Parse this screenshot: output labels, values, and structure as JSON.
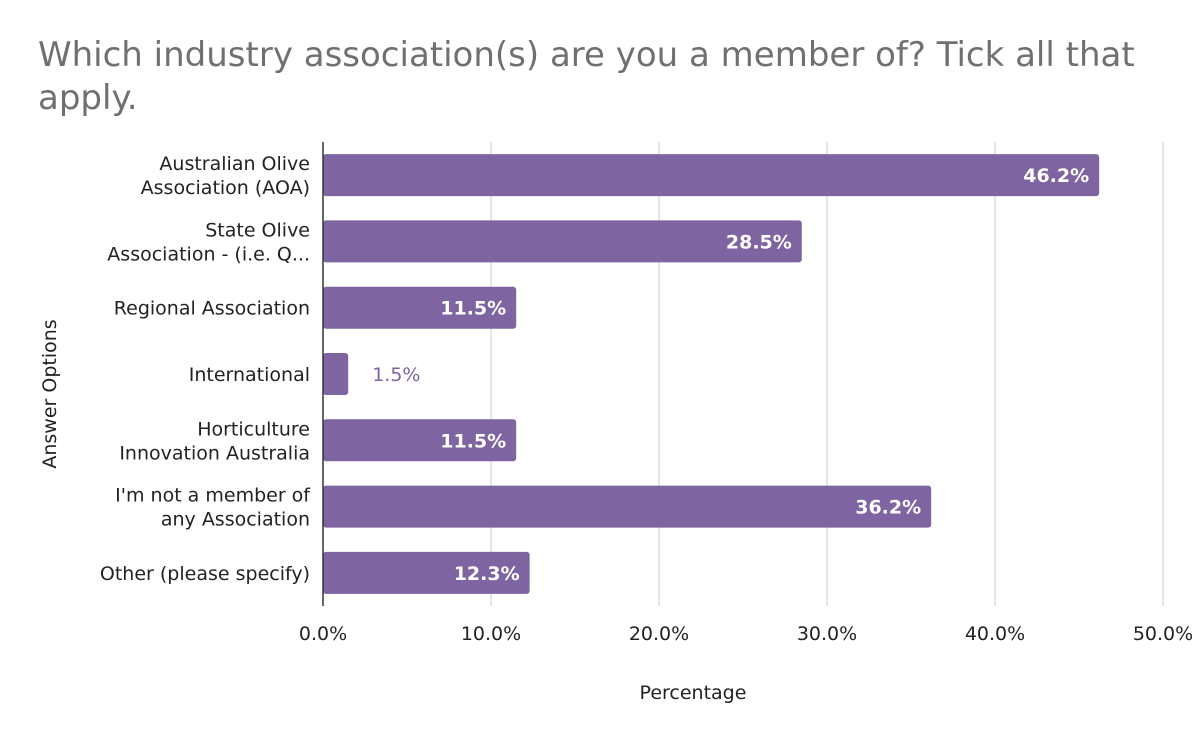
{
  "chart_data": {
    "type": "bar",
    "orientation": "horizontal",
    "title": "Which industry association(s) are you a member of? Tick all that apply.",
    "xlabel": "Percentage",
    "ylabel": "Answer Options",
    "categories": [
      [
        "Australian Olive",
        "Association (AOA)"
      ],
      [
        "State Olive",
        "Association - (i.e. Q..."
      ],
      [
        "Regional Association"
      ],
      [
        "International"
      ],
      [
        "Horticulture",
        "Innovation Australia"
      ],
      [
        "I'm not a member of",
        "any Association"
      ],
      [
        "Other (please specify)"
      ]
    ],
    "values": [
      46.2,
      28.5,
      11.5,
      1.5,
      11.5,
      36.2,
      12.3
    ],
    "data_labels": [
      "46.2%",
      "28.5%",
      "11.5%",
      "1.5%",
      "11.5%",
      "36.2%",
      "12.3%"
    ],
    "xlim": [
      0,
      50
    ],
    "x_ticks": [
      0,
      10,
      20,
      30,
      40,
      50
    ],
    "x_tick_labels": [
      "0.0%",
      "10.0%",
      "20.0%",
      "30.0%",
      "40.0%",
      "50.0%"
    ],
    "grid": true,
    "bar_color": "#7e64a0",
    "legend": "none"
  }
}
